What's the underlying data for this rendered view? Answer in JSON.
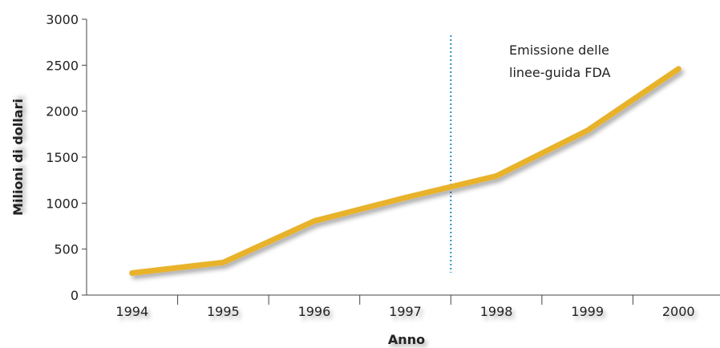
{
  "chart_data": {
    "type": "line",
    "title": "",
    "xlabel": "Anno",
    "ylabel": "Milioni di dollari",
    "categories": [
      "1994",
      "1995",
      "1996",
      "1997",
      "1998",
      "1999",
      "2000"
    ],
    "x": [
      1994,
      1995,
      1996,
      1997,
      1998,
      1999,
      2000
    ],
    "values": [
      240,
      355,
      805,
      1060,
      1295,
      1790,
      2460
    ],
    "ylim": [
      0,
      3000
    ],
    "yticks": [
      "0",
      "500",
      "1000",
      "1500",
      "2000",
      "2500",
      "3000"
    ],
    "grid": false,
    "legend": "none",
    "line_color": "#e8b22c",
    "annotation": {
      "text_line1": "Emissione delle",
      "text_line2": "linee-guida FDA",
      "x": 1997.5,
      "line_color": "#2a8fc8"
    }
  }
}
